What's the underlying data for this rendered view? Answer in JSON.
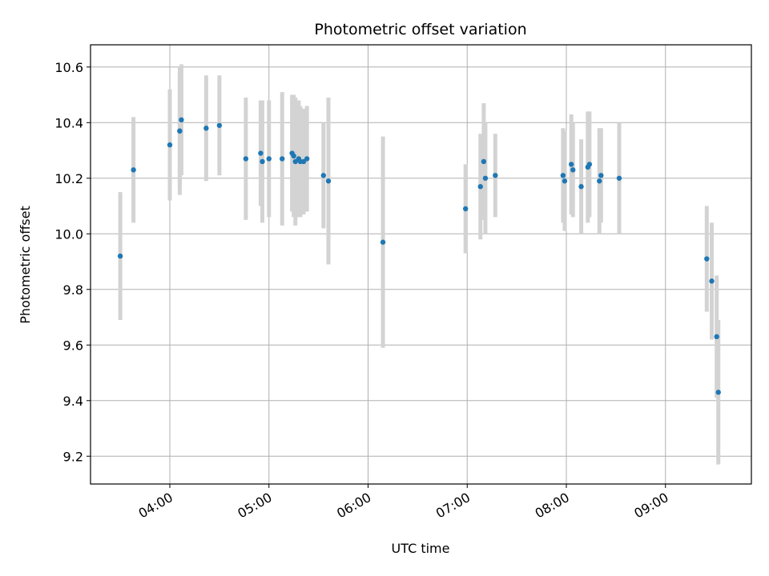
{
  "chart_data": {
    "type": "scatter",
    "title": "Photometric offset variation",
    "xlabel": "UTC time",
    "ylabel": "Photometric offset",
    "x_ticks": [
      "04:00",
      "05:00",
      "06:00",
      "07:00",
      "08:00",
      "09:00"
    ],
    "y_ticks": [
      "9.2",
      "9.4",
      "9.6",
      "9.8",
      "10.0",
      "10.2",
      "10.4",
      "10.6"
    ],
    "xlim": [
      "03:12",
      "09:52"
    ],
    "ylim": [
      9.1,
      10.68
    ],
    "grid": true,
    "point_color": "#1f77b4",
    "errorbar_color": "#d3d3d3",
    "points": [
      {
        "x": "03:30",
        "y": 9.92,
        "err": 0.23
      },
      {
        "x": "03:38",
        "y": 10.23,
        "err": 0.19
      },
      {
        "x": "04:00",
        "y": 10.32,
        "err": 0.2
      },
      {
        "x": "04:06",
        "y": 10.37,
        "err": 0.23
      },
      {
        "x": "04:06",
        "y": 10.37,
        "err": 0.2
      },
      {
        "x": "04:07",
        "y": 10.41,
        "err": 0.2
      },
      {
        "x": "04:22",
        "y": 10.38,
        "err": 0.19
      },
      {
        "x": "04:30",
        "y": 10.39,
        "err": 0.18
      },
      {
        "x": "04:46",
        "y": 10.27,
        "err": 0.22
      },
      {
        "x": "04:55",
        "y": 10.29,
        "err": 0.19
      },
      {
        "x": "04:56",
        "y": 10.26,
        "err": 0.22
      },
      {
        "x": "05:00",
        "y": 10.27,
        "err": 0.21
      },
      {
        "x": "05:08",
        "y": 10.27,
        "err": 0.24
      },
      {
        "x": "05:14",
        "y": 10.29,
        "err": 0.21
      },
      {
        "x": "05:15",
        "y": 10.28,
        "err": 0.22
      },
      {
        "x": "05:16",
        "y": 10.26,
        "err": 0.23
      },
      {
        "x": "05:18",
        "y": 10.27,
        "err": 0.21
      },
      {
        "x": "05:19",
        "y": 10.26,
        "err": 0.2
      },
      {
        "x": "05:21",
        "y": 10.26,
        "err": 0.19
      },
      {
        "x": "05:23",
        "y": 10.27,
        "err": 0.19
      },
      {
        "x": "05:33",
        "y": 10.21,
        "err": 0.19
      },
      {
        "x": "05:36",
        "y": 10.19,
        "err": 0.3
      },
      {
        "x": "06:09",
        "y": 9.97,
        "err": 0.38
      },
      {
        "x": "06:59",
        "y": 10.09,
        "err": 0.16
      },
      {
        "x": "07:08",
        "y": 10.17,
        "err": 0.19
      },
      {
        "x": "07:10",
        "y": 10.26,
        "err": 0.21
      },
      {
        "x": "07:11",
        "y": 10.2,
        "err": 0.2
      },
      {
        "x": "07:17",
        "y": 10.21,
        "err": 0.15
      },
      {
        "x": "07:58",
        "y": 10.21,
        "err": 0.17
      },
      {
        "x": "07:59",
        "y": 10.19,
        "err": 0.18
      },
      {
        "x": "08:03",
        "y": 10.25,
        "err": 0.18
      },
      {
        "x": "08:04",
        "y": 10.23,
        "err": 0.17
      },
      {
        "x": "08:09",
        "y": 10.17,
        "err": 0.17
      },
      {
        "x": "08:13",
        "y": 10.24,
        "err": 0.2
      },
      {
        "x": "08:14",
        "y": 10.25,
        "err": 0.19
      },
      {
        "x": "08:20",
        "y": 10.19,
        "err": 0.19
      },
      {
        "x": "08:21",
        "y": 10.21,
        "err": 0.17
      },
      {
        "x": "08:32",
        "y": 10.2,
        "err": 0.2
      },
      {
        "x": "09:25",
        "y": 9.91,
        "err": 0.19
      },
      {
        "x": "09:28",
        "y": 9.83,
        "err": 0.21
      },
      {
        "x": "09:31",
        "y": 9.63,
        "err": 0.22
      },
      {
        "x": "09:32",
        "y": 9.43,
        "err": 0.26
      }
    ]
  }
}
